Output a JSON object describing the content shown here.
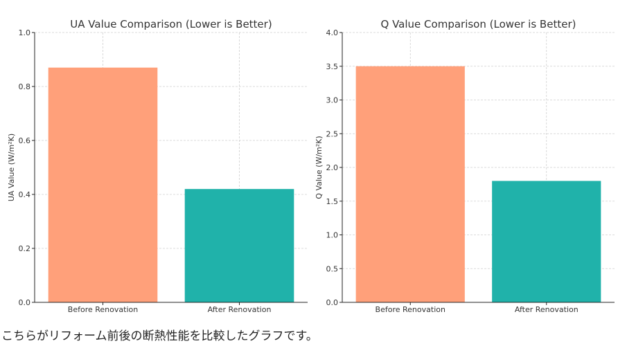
{
  "colors": {
    "before": "#FFA07A",
    "after": "#20B2AA",
    "axis": "#222222",
    "grid": "#cfcfcf",
    "text": "#333333"
  },
  "chart_data": [
    {
      "type": "bar",
      "title": "UA Value Comparison (Lower is Better)",
      "categories": [
        "Before Renovation",
        "After Renovation"
      ],
      "values": [
        0.87,
        0.42
      ],
      "xlabel": "",
      "ylabel": "UA Value (W/m²K)",
      "ylim": [
        0,
        1.0
      ],
      "yticks": [
        0.0,
        0.2,
        0.4,
        0.6,
        0.8,
        1.0
      ],
      "ytick_labels": [
        "0.0",
        "0.2",
        "0.4",
        "0.6",
        "0.8",
        "1.0"
      ],
      "grid": true
    },
    {
      "type": "bar",
      "title": "Q Value Comparison (Lower is Better)",
      "categories": [
        "Before Renovation",
        "After Renovation"
      ],
      "values": [
        3.5,
        1.8
      ],
      "xlabel": "",
      "ylabel": "Q Value (W/m²K)",
      "ylim": [
        0,
        4.0
      ],
      "yticks": [
        0.0,
        0.5,
        1.0,
        1.5,
        2.0,
        2.5,
        3.0,
        3.5,
        4.0
      ],
      "ytick_labels": [
        "0.0",
        "0.5",
        "1.0",
        "1.5",
        "2.0",
        "2.5",
        "3.0",
        "3.5",
        "4.0"
      ],
      "grid": true
    }
  ],
  "caption": "こちらがリフォーム前後の断熱性能を比較したグラフです。"
}
